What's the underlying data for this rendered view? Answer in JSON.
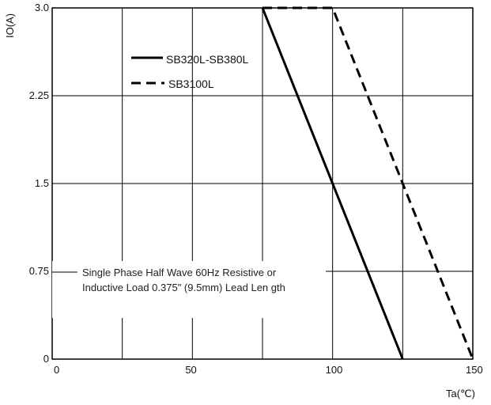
{
  "chart_data": {
    "type": "line",
    "xlabel": "Ta(℃)",
    "ylabel": "IO(A)",
    "xlim": [
      0,
      150
    ],
    "ylim": [
      0,
      3.0
    ],
    "x_ticks": [
      "0",
      "50",
      "100",
      "150"
    ],
    "y_ticks": [
      "0",
      "0.75",
      "1.5",
      "2.25",
      "3.0"
    ],
    "grid": true,
    "legend_position": "top-left",
    "series": [
      {
        "name": "SB320L-SB380L",
        "style": "solid",
        "x": [
          75,
          125
        ],
        "y": [
          3.0,
          0
        ]
      },
      {
        "name": "SB3100L",
        "style": "dashed",
        "x": [
          75,
          100,
          150
        ],
        "y": [
          3.0,
          3.0,
          0
        ]
      }
    ],
    "annotation": {
      "line1": "Single Phase Half Wave 60Hz Resistive or",
      "line2": "Inductive Load 0.375\"  (9.5mm) Lead Len gth"
    }
  }
}
